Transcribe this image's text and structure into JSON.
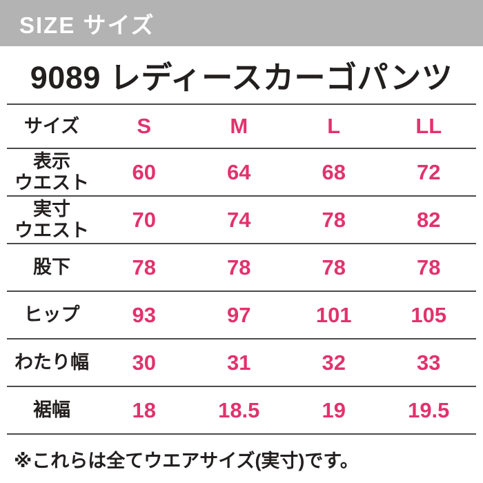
{
  "banner": {
    "title": "SIZE サイズ"
  },
  "product": {
    "title": "9089 レディースカーゴパンツ"
  },
  "table": {
    "header": {
      "label": "サイズ",
      "values": [
        "S",
        "M",
        "L",
        "LL"
      ]
    },
    "rows": [
      {
        "label": "表示\nウエスト",
        "values": [
          "60",
          "64",
          "68",
          "72"
        ]
      },
      {
        "label": "実寸\nウエスト",
        "values": [
          "70",
          "74",
          "78",
          "82"
        ]
      },
      {
        "label": "股下",
        "values": [
          "78",
          "78",
          "78",
          "78"
        ]
      },
      {
        "label": "ヒップ",
        "values": [
          "93",
          "97",
          "101",
          "105"
        ]
      },
      {
        "label": "わたり幅",
        "values": [
          "30",
          "31",
          "32",
          "33"
        ]
      },
      {
        "label": "裾幅",
        "values": [
          "18",
          "18.5",
          "19",
          "19.5"
        ]
      }
    ]
  },
  "footer": {
    "note": "※これらは全てウエアサイズ(実寸)です。"
  },
  "colors": {
    "accent_pink": "#e2326e",
    "banner_gray": "#b3b3b3",
    "text_black": "#231f1f",
    "rule_line": "#4a4a4a"
  },
  "chart_data": {
    "type": "table",
    "title": "9089 レディースカーゴパンツ",
    "columns": [
      "S",
      "M",
      "L",
      "LL"
    ],
    "row_labels": [
      "表示ウエスト",
      "実寸ウエスト",
      "股下",
      "ヒップ",
      "わたり幅",
      "裾幅"
    ],
    "series": [
      {
        "name": "表示ウエスト",
        "values": [
          60,
          64,
          68,
          72
        ]
      },
      {
        "name": "実寸ウエスト",
        "values": [
          70,
          74,
          78,
          82
        ]
      },
      {
        "name": "股下",
        "values": [
          78,
          78,
          78,
          78
        ]
      },
      {
        "name": "ヒップ",
        "values": [
          93,
          97,
          101,
          105
        ]
      },
      {
        "name": "わたり幅",
        "values": [
          30,
          31,
          32,
          33
        ]
      },
      {
        "name": "裾幅",
        "values": [
          18,
          18.5,
          19,
          19.5
        ]
      }
    ],
    "note": "※これらは全てウエアサイズ(実寸)です。"
  }
}
